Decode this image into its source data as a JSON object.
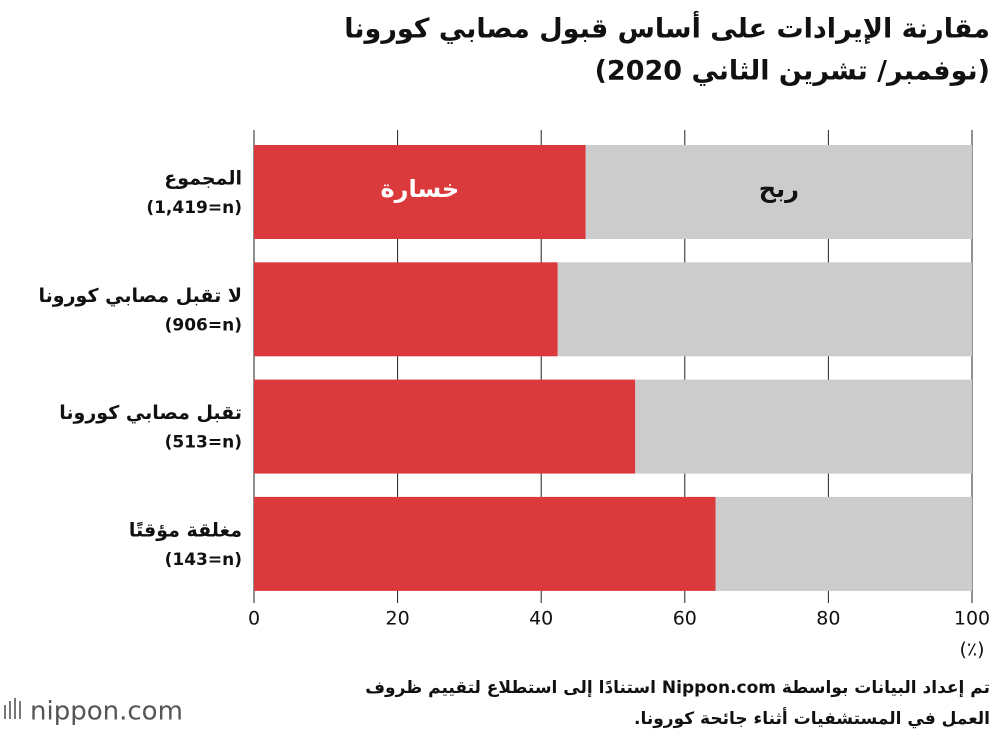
{
  "chart_data": {
    "type": "stacked_bar_horizontal",
    "title": [
      "مقارنة الإيرادات على أساس قبول مصابي كورونا",
      "(نوفمبر/ تشرين الثاني 2020)"
    ],
    "categories": [
      "المجموع",
      "لا تقبل مصابي كورونا",
      "تقبل مصابي كورونا",
      "مغلقة مؤقتًا"
    ],
    "sample_sizes": [
      "(1,419=n)",
      "(906=n)",
      "(513=n)",
      "(143=n)"
    ],
    "series": [
      {
        "name": "خسارة",
        "color": "#db3a3c",
        "values": [
          46.2,
          42.3,
          53.1,
          64.3
        ]
      },
      {
        "name": "ربح",
        "color": "#cccccc",
        "values": [
          53.8,
          57.7,
          46.9,
          35.7
        ]
      }
    ],
    "xlim": [
      0,
      100
    ],
    "xticks": [
      0,
      20,
      40,
      60,
      80,
      100
    ],
    "x_unit": "(٪)",
    "grid": true,
    "note": [
      "تم إعداد البيانات بواسطة Nippon.com استنادًا إلى استطلاع لتقييم ظروف",
      "العمل في المستشفيات أثناء جائحة كورونا."
    ],
    "logo": "nippon.com"
  }
}
